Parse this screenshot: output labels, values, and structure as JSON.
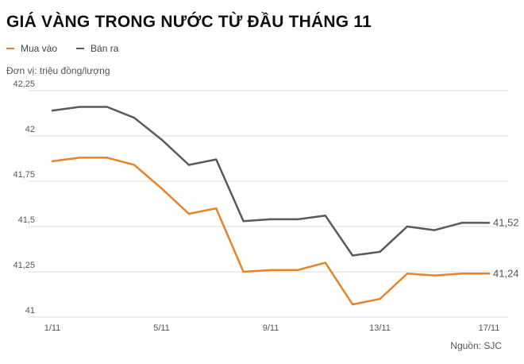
{
  "chart_data": {
    "type": "line",
    "title": "GIÁ VÀNG TRONG NƯỚC TỪ ĐẦU THÁNG 11",
    "unit_label": "Đơn vị: triệu đồng/lượng",
    "source": "Nguồn: SJC",
    "ylim": [
      41,
      42.25
    ],
    "y_ticks": [
      41,
      41.25,
      41.5,
      41.75,
      42,
      42.25
    ],
    "y_tick_labels": [
      "41",
      "41,25",
      "41,5",
      "41,75",
      "42",
      "42,25"
    ],
    "x_tick_labels": [
      "1/11",
      "5/11",
      "9/11",
      "13/11",
      "17/11"
    ],
    "x_tick_days": [
      1,
      5,
      9,
      13,
      17
    ],
    "x_days": [
      1,
      2,
      3,
      4,
      5,
      6,
      7,
      8,
      9,
      10,
      11,
      12,
      13,
      14,
      15,
      16,
      17
    ],
    "grid": "horizontal",
    "legend_position": "top-left",
    "series": [
      {
        "name": "Mua vào",
        "color": "#e8832a",
        "values": [
          41.86,
          41.88,
          41.88,
          41.84,
          41.71,
          41.57,
          41.6,
          41.25,
          41.26,
          41.26,
          41.3,
          41.07,
          41.1,
          41.24,
          41.23,
          41.24,
          41.24
        ],
        "end_label": "41,24"
      },
      {
        "name": "Bán ra",
        "color": "#5a5a5a",
        "values": [
          42.14,
          42.16,
          42.16,
          42.1,
          41.98,
          41.84,
          41.87,
          41.53,
          41.54,
          41.54,
          41.56,
          41.34,
          41.36,
          41.5,
          41.48,
          41.52,
          41.52
        ],
        "end_label": "41,52"
      }
    ]
  }
}
